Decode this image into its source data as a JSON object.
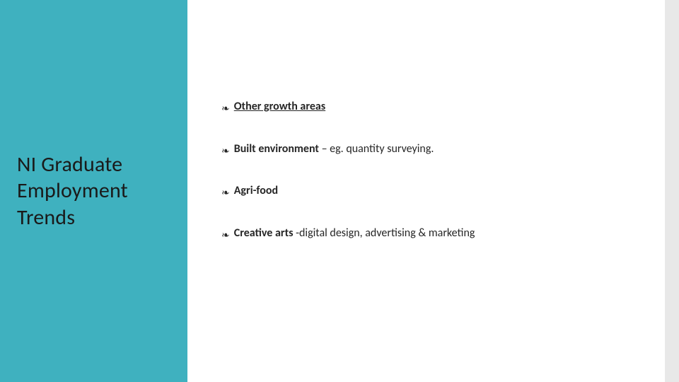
{
  "slide": {
    "background_color": "#ffffff",
    "right_strip_color": "#e8e8e8",
    "left_panel": {
      "background_color": "#3fb1bf",
      "title": "NI Graduate Employment Trends",
      "title_color": "#1a1a1a",
      "title_fontsize": 30,
      "title_fontweight": 300
    },
    "content": {
      "text_color": "#262626",
      "fontsize": 16,
      "bullet_glyph": "❧",
      "items": [
        {
          "bold": "Other growth areas",
          "bold_underline": true,
          "rest": ""
        },
        {
          "bold": "Built environment",
          "bold_underline": false,
          "rest": " – eg. quantity surveying."
        },
        {
          "bold": "Agri-food",
          "bold_underline": false,
          "rest": ""
        },
        {
          "bold": "Creative arts",
          "bold_underline": false,
          "rest": "  -digital design, advertising & marketing"
        }
      ]
    }
  }
}
